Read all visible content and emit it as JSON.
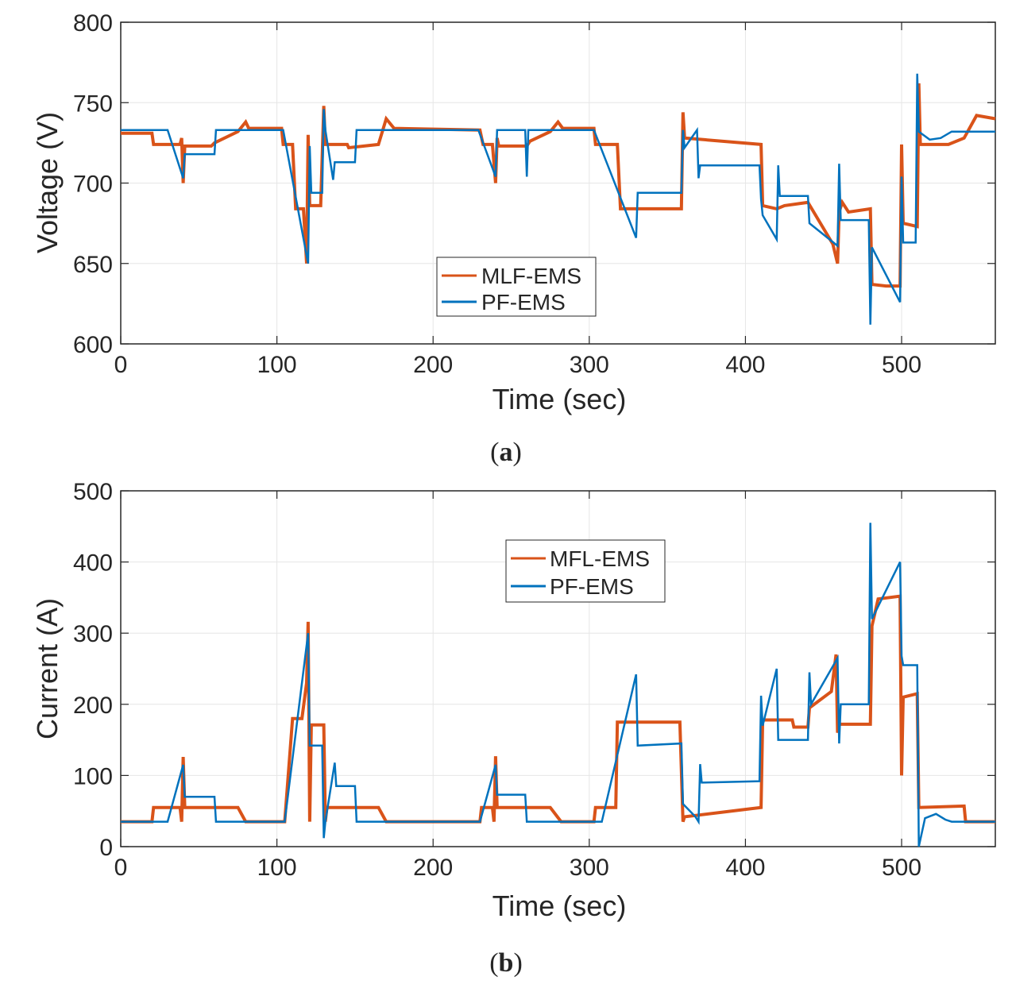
{
  "colors": {
    "orange": "#D95319",
    "blue": "#0072BD",
    "grid": "#E6E6E6",
    "axis": "#262626"
  },
  "chart_data": [
    {
      "type": "line",
      "panel_label": "a",
      "xlabel": "Time (sec)",
      "ylabel": "Voltage (V)",
      "xlim": [
        0,
        560
      ],
      "ylim": [
        600,
        800
      ],
      "xticks": [
        0,
        100,
        200,
        300,
        400,
        500
      ],
      "yticks": [
        600,
        650,
        700,
        750,
        800
      ],
      "grid": true,
      "legend_position": "lower-center",
      "series": [
        {
          "name": "MLF-EMS",
          "color": "#D95319",
          "points": [
            [
              0,
              731
            ],
            [
              20,
              731
            ],
            [
              21,
              724
            ],
            [
              38,
              724
            ],
            [
              39,
              728
            ],
            [
              40,
              700
            ],
            [
              41,
              723
            ],
            [
              58,
              723
            ],
            [
              60,
              725
            ],
            [
              75,
              732
            ],
            [
              80,
              738
            ],
            [
              82,
              734
            ],
            [
              103,
              734
            ],
            [
              104,
              724
            ],
            [
              110,
              724
            ],
            [
              112,
              684
            ],
            [
              117,
              684
            ],
            [
              119,
              650
            ],
            [
              120,
              730
            ],
            [
              121,
              686
            ],
            [
              128,
              686
            ],
            [
              130,
              748
            ],
            [
              131,
              724
            ],
            [
              145,
              724
            ],
            [
              146,
              722
            ],
            [
              165,
              724
            ],
            [
              170,
              740
            ],
            [
              175,
              734
            ],
            [
              230,
              733
            ],
            [
              232,
              724
            ],
            [
              238,
              724
            ],
            [
              240,
              700
            ],
            [
              241,
              728
            ],
            [
              242,
              723
            ],
            [
              260,
              723
            ],
            [
              262,
              726
            ],
            [
              275,
              732
            ],
            [
              280,
              738
            ],
            [
              283,
              734
            ],
            [
              303,
              734
            ],
            [
              304,
              724
            ],
            [
              318,
              724
            ],
            [
              320,
              684
            ],
            [
              345,
              684
            ],
            [
              359,
              684
            ],
            [
              360,
              744
            ],
            [
              361,
              728
            ],
            [
              410,
              724
            ],
            [
              411,
              686
            ],
            [
              420,
              684
            ],
            [
              425,
              686
            ],
            [
              440,
              688
            ],
            [
              456,
              662
            ],
            [
              459,
              650
            ],
            [
              460,
              682
            ],
            [
              462,
              688
            ],
            [
              466,
              682
            ],
            [
              480,
              684
            ],
            [
              481,
              637
            ],
            [
              490,
              636
            ],
            [
              499,
              636
            ],
            [
              500,
              724
            ],
            [
              501,
              675
            ],
            [
              510,
              673
            ],
            [
              511,
              762
            ],
            [
              512,
              724
            ],
            [
              530,
              724
            ],
            [
              540,
              728
            ],
            [
              548,
              742
            ],
            [
              560,
              740
            ]
          ]
        },
        {
          "name": "PF-EMS",
          "color": "#0072BD",
          "points": [
            [
              0,
              733
            ],
            [
              30,
              733
            ],
            [
              40,
              703
            ],
            [
              41,
              718
            ],
            [
              60,
              718
            ],
            [
              61,
              733
            ],
            [
              104,
              733
            ],
            [
              120,
              650
            ],
            [
              121,
              723
            ],
            [
              122,
              694
            ],
            [
              129,
              694
            ],
            [
              130,
              746
            ],
            [
              131,
              733
            ],
            [
              136,
              702
            ],
            [
              137,
              713
            ],
            [
              150,
              713
            ],
            [
              151,
              733
            ],
            [
              229,
              733
            ],
            [
              240,
              704
            ],
            [
              241,
              733
            ],
            [
              259,
              733
            ],
            [
              260,
              704
            ],
            [
              261,
              733
            ],
            [
              303,
              733
            ],
            [
              330,
              666
            ],
            [
              331,
              694
            ],
            [
              359,
              694
            ],
            [
              360,
              733
            ],
            [
              361,
              722
            ],
            [
              369,
              733
            ],
            [
              370,
              703
            ],
            [
              371,
              711
            ],
            [
              409,
              711
            ],
            [
              410,
              690
            ],
            [
              411,
              680
            ],
            [
              420,
              665
            ],
            [
              421,
              711
            ],
            [
              422,
              692
            ],
            [
              440,
              692
            ],
            [
              441,
              675
            ],
            [
              459,
              661
            ],
            [
              460,
              712
            ],
            [
              461,
              677
            ],
            [
              479,
              677
            ],
            [
              480,
              612
            ],
            [
              481,
              660
            ],
            [
              499,
              626
            ],
            [
              500,
              704
            ],
            [
              501,
              663
            ],
            [
              509,
              663
            ],
            [
              510,
              768
            ],
            [
              511,
              732
            ],
            [
              518,
              727
            ],
            [
              525,
              728
            ],
            [
              532,
              732
            ],
            [
              560,
              732
            ]
          ]
        }
      ]
    },
    {
      "type": "line",
      "panel_label": "b",
      "xlabel": "Time (sec)",
      "ylabel": "Current (A)",
      "xlim": [
        0,
        560
      ],
      "ylim": [
        0,
        500
      ],
      "xticks": [
        0,
        100,
        200,
        300,
        400,
        500
      ],
      "yticks": [
        0,
        100,
        200,
        300,
        400,
        500
      ],
      "grid": true,
      "legend_position": "upper-center",
      "series": [
        {
          "name": "MFL-EMS",
          "color": "#D95319",
          "points": [
            [
              0,
              35
            ],
            [
              20,
              35
            ],
            [
              21,
              55
            ],
            [
              38,
              55
            ],
            [
              39,
              35
            ],
            [
              40,
              126
            ],
            [
              41,
              55
            ],
            [
              75,
              55
            ],
            [
              80,
              35
            ],
            [
              105,
              35
            ],
            [
              110,
              180
            ],
            [
              116,
              180
            ],
            [
              119,
              230
            ],
            [
              120,
              316
            ],
            [
              121,
              35
            ],
            [
              122,
              171
            ],
            [
              130,
              171
            ],
            [
              131,
              35
            ],
            [
              132,
              55
            ],
            [
              165,
              55
            ],
            [
              170,
              35
            ],
            [
              230,
              35
            ],
            [
              231,
              55
            ],
            [
              238,
              55
            ],
            [
              239,
              35
            ],
            [
              240,
              127
            ],
            [
              241,
              55
            ],
            [
              275,
              55
            ],
            [
              282,
              35
            ],
            [
              303,
              35
            ],
            [
              304,
              55
            ],
            [
              317,
              55
            ],
            [
              318,
              175
            ],
            [
              358,
              175
            ],
            [
              360,
              35
            ],
            [
              361,
              42
            ],
            [
              410,
              55
            ],
            [
              411,
              178
            ],
            [
              430,
              178
            ],
            [
              431,
              168
            ],
            [
              440,
              168
            ],
            [
              441,
              195
            ],
            [
              455,
              218
            ],
            [
              458,
              270
            ],
            [
              459,
              160
            ],
            [
              460,
              172
            ],
            [
              480,
              172
            ],
            [
              481,
              310
            ],
            [
              485,
              348
            ],
            [
              499,
              352
            ],
            [
              500,
              100
            ],
            [
              501,
              210
            ],
            [
              510,
              215
            ],
            [
              511,
              55
            ],
            [
              540,
              57
            ],
            [
              541,
              35
            ],
            [
              560,
              35
            ]
          ]
        },
        {
          "name": "PF-EMS",
          "color": "#0072BD",
          "points": [
            [
              0,
              35
            ],
            [
              30,
              35
            ],
            [
              40,
              115
            ],
            [
              41,
              70
            ],
            [
              60,
              70
            ],
            [
              61,
              35
            ],
            [
              105,
              35
            ],
            [
              120,
              300
            ],
            [
              121,
              142
            ],
            [
              129,
              142
            ],
            [
              130,
              12
            ],
            [
              131,
              35
            ],
            [
              137,
              118
            ],
            [
              138,
              85
            ],
            [
              150,
              85
            ],
            [
              151,
              35
            ],
            [
              230,
              35
            ],
            [
              240,
              115
            ],
            [
              241,
              73
            ],
            [
              259,
              73
            ],
            [
              260,
              35
            ],
            [
              308,
              35
            ],
            [
              330,
              242
            ],
            [
              331,
              142
            ],
            [
              359,
              145
            ],
            [
              360,
              60
            ],
            [
              368,
              42
            ],
            [
              370,
              35
            ],
            [
              371,
              116
            ],
            [
              372,
              90
            ],
            [
              409,
              92
            ],
            [
              410,
              212
            ],
            [
              411,
              170
            ],
            [
              420,
              250
            ],
            [
              421,
              150
            ],
            [
              440,
              150
            ],
            [
              441,
              245
            ],
            [
              442,
              200
            ],
            [
              459,
              265
            ],
            [
              460,
              145
            ],
            [
              461,
              200
            ],
            [
              479,
              200
            ],
            [
              480,
              455
            ],
            [
              481,
              320
            ],
            [
              499,
              400
            ],
            [
              500,
              268
            ],
            [
              501,
              255
            ],
            [
              510,
              255
            ],
            [
              511,
              0
            ],
            [
              515,
              40
            ],
            [
              522,
              46
            ],
            [
              528,
              38
            ],
            [
              532,
              35
            ],
            [
              560,
              35
            ]
          ]
        }
      ]
    }
  ]
}
